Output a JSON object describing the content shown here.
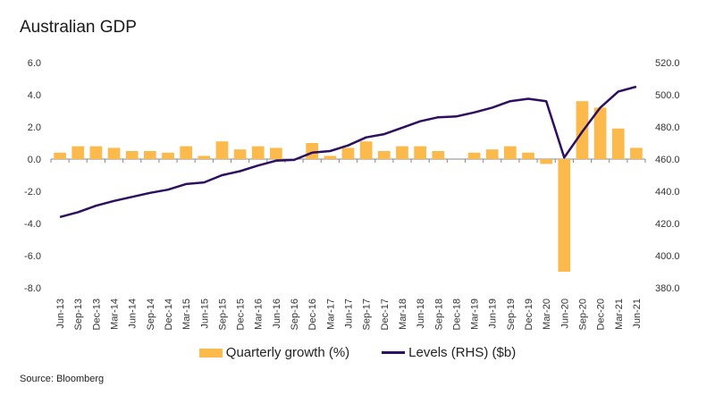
{
  "title": "Australian GDP",
  "source": "Source: Bloomberg",
  "colors": {
    "bar": "#FBBA4B",
    "line": "#2E0E5E",
    "axis": "#888888"
  },
  "chart_data": {
    "type": "bar+line",
    "categories": [
      "Jun-13",
      "Sep-13",
      "Dec-13",
      "Mar-14",
      "Jun-14",
      "Sep-14",
      "Dec-14",
      "Mar-15",
      "Jun-15",
      "Sep-15",
      "Dec-15",
      "Mar-16",
      "Jun-16",
      "Sep-16",
      "Dec-16",
      "Mar-17",
      "Jun-17",
      "Sep-17",
      "Dec-17",
      "Mar-18",
      "Jun-18",
      "Sep-18",
      "Dec-18",
      "Mar-19",
      "Jun-19",
      "Sep-19",
      "Dec-19",
      "Mar-20",
      "Jun-20",
      "Sep-20",
      "Dec-20",
      "Mar-21",
      "Jun-21"
    ],
    "series": [
      {
        "name": "Quarterly growth (%)",
        "type": "bar",
        "axis": "left",
        "values": [
          0.4,
          0.8,
          0.8,
          0.7,
          0.5,
          0.5,
          0.4,
          0.8,
          0.2,
          1.1,
          0.6,
          0.8,
          0.7,
          0.0,
          1.0,
          0.2,
          0.7,
          1.1,
          0.5,
          0.8,
          0.8,
          0.5,
          0.0,
          0.4,
          0.6,
          0.8,
          0.4,
          -0.3,
          -7.0,
          3.6,
          3.2,
          1.9,
          0.7
        ]
      },
      {
        "name": "Levels (RHS) ($b)",
        "type": "line",
        "axis": "right",
        "values": [
          424,
          427,
          431,
          434,
          436.5,
          439,
          441,
          444.5,
          445.5,
          450,
          452.5,
          456,
          459,
          459.5,
          464,
          465,
          468.5,
          473.5,
          475.5,
          479.5,
          483.5,
          486,
          486.5,
          489,
          492,
          496,
          497.5,
          496,
          461,
          477,
          492,
          502,
          505
        ]
      }
    ],
    "y_left": {
      "ticks": [
        "6.0",
        "4.0",
        "2.0",
        "0.0",
        "-2.0",
        "-4.0",
        "-6.0",
        "-8.0"
      ],
      "range": [
        -8,
        6
      ]
    },
    "y_right": {
      "ticks": [
        "520.0",
        "500.0",
        "480.0",
        "460.0",
        "440.0",
        "420.0",
        "400.0",
        "380.0"
      ],
      "range": [
        380,
        520
      ]
    },
    "grid": false,
    "legend_position": "bottom"
  }
}
